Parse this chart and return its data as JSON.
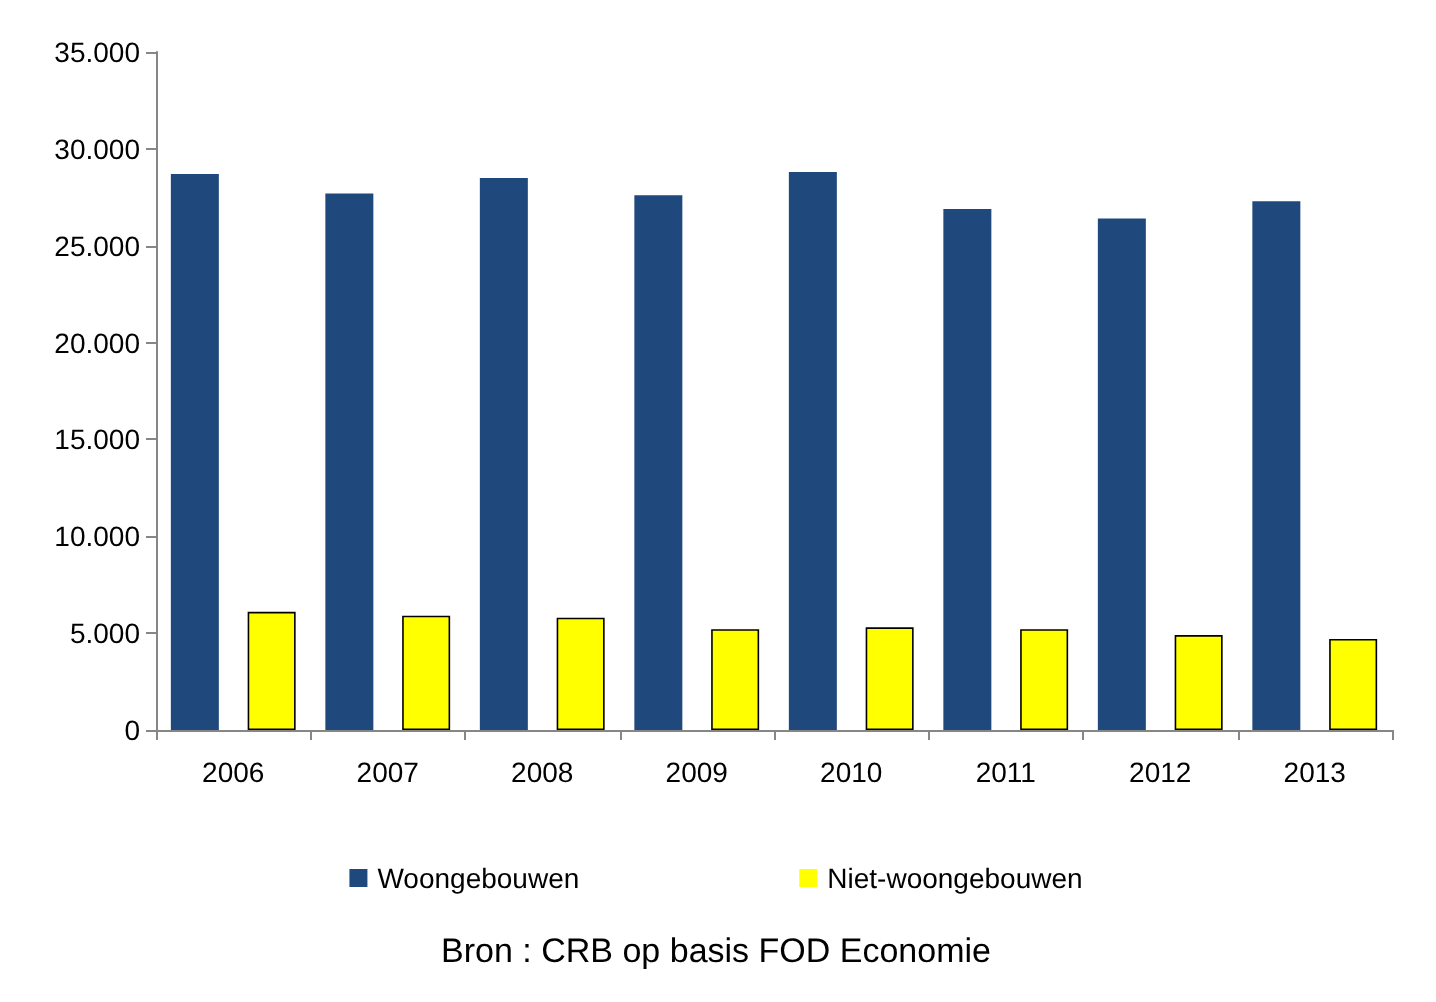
{
  "chart_data": {
    "type": "bar",
    "categories": [
      "2006",
      "2007",
      "2008",
      "2009",
      "2010",
      "2011",
      "2012",
      "2013"
    ],
    "series": [
      {
        "name": "Woongebouwen",
        "color": "#1f497d",
        "values": [
          28700,
          27700,
          28500,
          27600,
          28800,
          26900,
          26400,
          27300
        ]
      },
      {
        "name": "Niet-woongebouwen",
        "color": "#ffff00",
        "values": [
          6100,
          5900,
          5800,
          5200,
          5300,
          5200,
          4900,
          4700
        ]
      }
    ],
    "ylim": [
      0,
      35000
    ],
    "yticks": [
      {
        "value": 0,
        "label": "0"
      },
      {
        "value": 5000,
        "label": "5.000"
      },
      {
        "value": 10000,
        "label": "10.000"
      },
      {
        "value": 15000,
        "label": "15.000"
      },
      {
        "value": 20000,
        "label": "20.000"
      },
      {
        "value": 25000,
        "label": "25.000"
      },
      {
        "value": 30000,
        "label": "30.000"
      },
      {
        "value": 35000,
        "label": "35.000"
      }
    ],
    "grid": false,
    "legend": "bottom",
    "annotations": [
      "Bron : CRB op basis FOD Economie"
    ]
  }
}
